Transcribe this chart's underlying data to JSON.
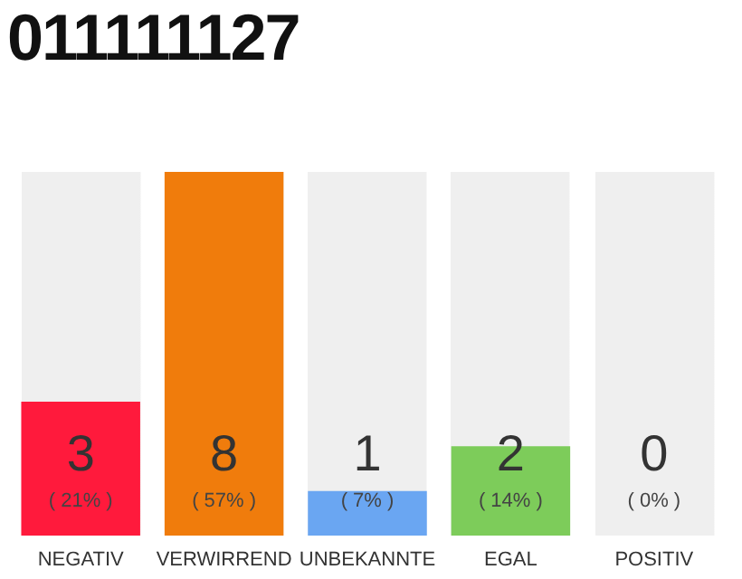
{
  "chart_data": {
    "type": "bar",
    "title": "011111127",
    "categories": [
      "NEGATIV",
      "VERWIRREND",
      "UNBEKANNTE",
      "EGAL",
      "POSITIV"
    ],
    "values": [
      21,
      57,
      7,
      14,
      0
    ],
    "colors": [
      "#ff1a3c",
      "#f07c0c",
      "#6aa6f2",
      "#7dcc5a",
      "#cccccc"
    ],
    "value_labels": [
      "( 21% )",
      "( 57% )",
      "( 7% )",
      "( 14% )",
      "( 0% )"
    ],
    "annotations": [
      "3",
      "8",
      "1",
      "2",
      "0"
    ],
    "tick_labels": "x"
  }
}
